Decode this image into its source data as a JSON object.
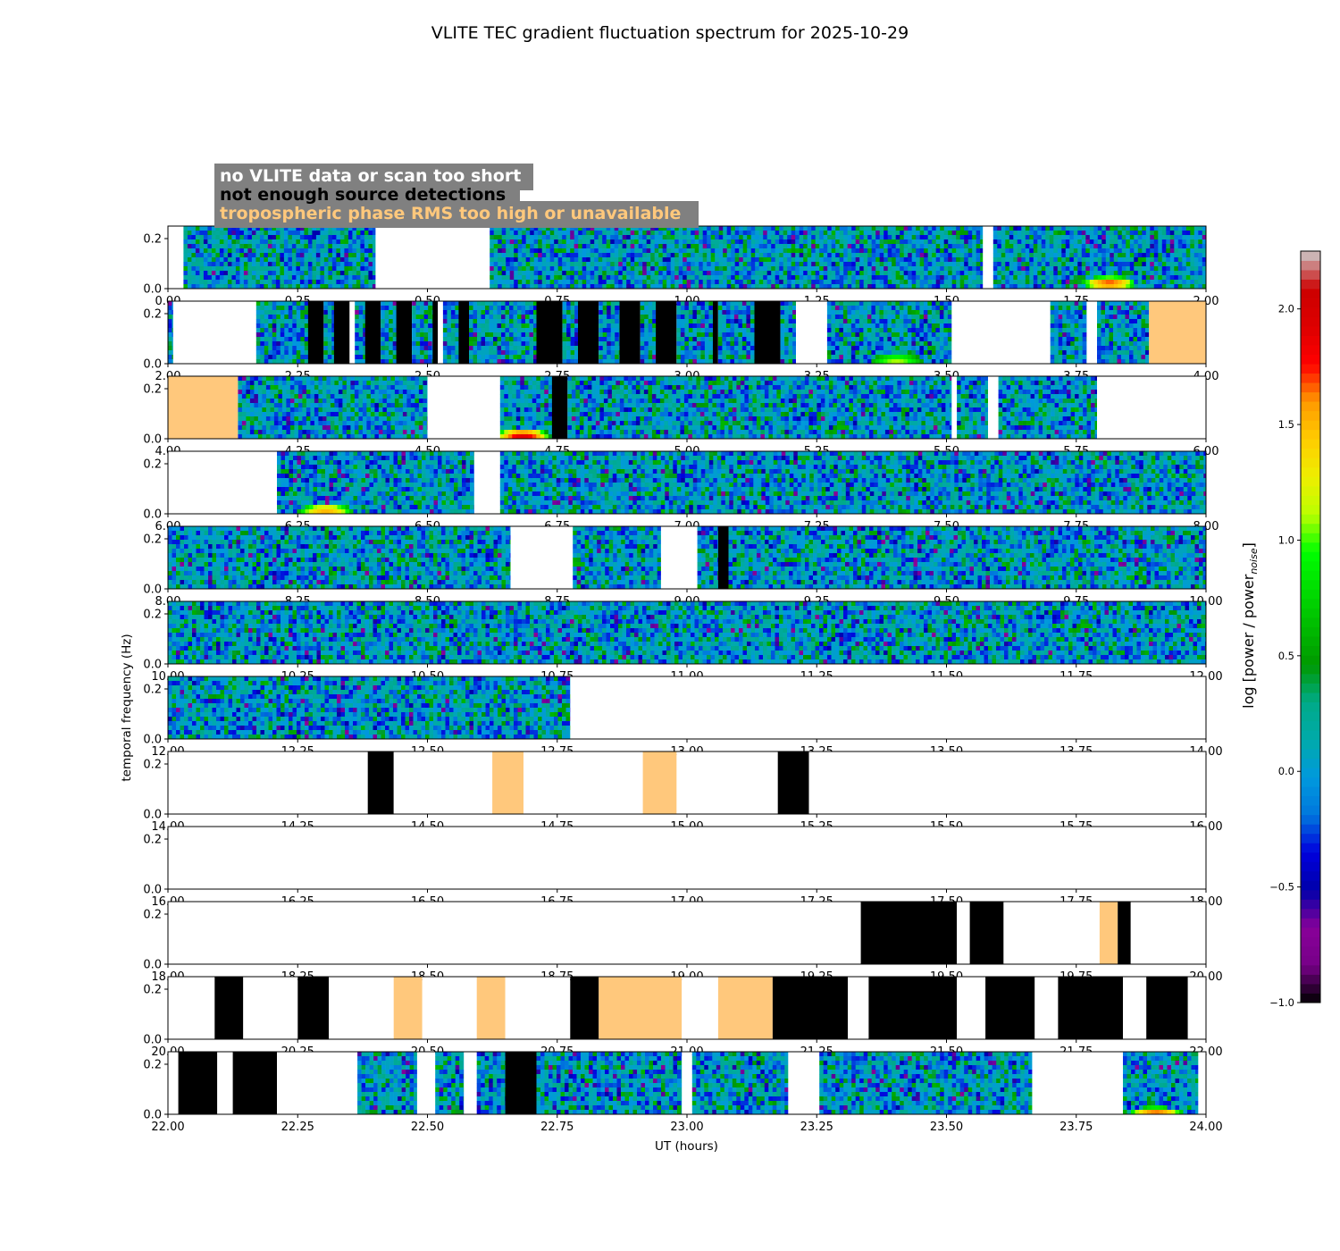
{
  "chart_data": {
    "type": "heatmap",
    "title": "VLITE TEC gradient fluctuation spectrum for 2025-10-29",
    "xlabel": "UT (hours)",
    "ylabel": "temporal frequency (Hz)",
    "colorbar_label": "log [power / power",
    "colorbar_label_sub": "noise",
    "colorbar_label_end": "]",
    "colorbar_range": [
      -1.0,
      2.25
    ],
    "colorbar_ticks": [
      "−1.0",
      "−0.5",
      "0.0",
      "0.5",
      "1.0",
      "1.5",
      "2.0"
    ],
    "colormap": "nipy_spectral",
    "y_range": [
      0.0,
      0.25
    ],
    "y_ticks": [
      "0.0",
      "0.2"
    ],
    "legend": {
      "placement": "top-left",
      "background": "#808080",
      "entries": [
        {
          "label": "no VLITE data or scan too short",
          "color": "#ffffff"
        },
        {
          "label": "not enough source detections",
          "color": "#000000"
        },
        {
          "label": "tropospheric phase RMS too high or unavailable",
          "color": "#ffc87c"
        }
      ]
    },
    "panels": [
      {
        "x_range": [
          0,
          2
        ],
        "x_ticks": [
          "0.00",
          "0.25",
          "0.50",
          "0.75",
          "1.00",
          "1.25",
          "1.50",
          "1.75",
          "2.00"
        ],
        "data": [
          [
            0.03,
            0.4,
            "d"
          ],
          [
            0.4,
            0.62,
            "w"
          ],
          [
            0.62,
            1.57,
            "d"
          ],
          [
            1.57,
            1.59,
            "w"
          ],
          [
            1.59,
            2.0,
            "d"
          ]
        ],
        "hotspots": [
          {
            "x": 1.81,
            "y": 0.03,
            "level": 1.7
          }
        ]
      },
      {
        "x_range": [
          2,
          4
        ],
        "x_ticks": [
          "2.00",
          "2.25",
          "2.50",
          "2.75",
          "3.00",
          "3.25",
          "3.50",
          "3.75",
          "4.00"
        ],
        "data": [
          [
            2.0,
            2.01,
            "d"
          ],
          [
            2.01,
            2.17,
            "w"
          ],
          [
            2.17,
            2.27,
            "d"
          ],
          [
            2.27,
            2.3,
            "b"
          ],
          [
            2.3,
            2.32,
            "d"
          ],
          [
            2.32,
            2.35,
            "b"
          ],
          [
            2.35,
            2.36,
            "w"
          ],
          [
            2.36,
            2.38,
            "d"
          ],
          [
            2.38,
            2.41,
            "b"
          ],
          [
            2.41,
            2.44,
            "d"
          ],
          [
            2.44,
            2.47,
            "b"
          ],
          [
            2.47,
            2.51,
            "d"
          ],
          [
            2.51,
            2.52,
            "b"
          ],
          [
            2.52,
            2.53,
            "w"
          ],
          [
            2.53,
            2.56,
            "d"
          ],
          [
            2.56,
            2.58,
            "b"
          ],
          [
            2.58,
            2.71,
            "d"
          ],
          [
            2.71,
            2.76,
            "b"
          ],
          [
            2.76,
            2.79,
            "d"
          ],
          [
            2.79,
            2.83,
            "b"
          ],
          [
            2.83,
            2.87,
            "d"
          ],
          [
            2.87,
            2.91,
            "b"
          ],
          [
            2.91,
            2.94,
            "d"
          ],
          [
            2.94,
            2.98,
            "b"
          ],
          [
            2.98,
            3.05,
            "d"
          ],
          [
            3.05,
            3.06,
            "b"
          ],
          [
            3.06,
            3.13,
            "d"
          ],
          [
            3.13,
            3.18,
            "b"
          ],
          [
            3.18,
            3.21,
            "d"
          ],
          [
            3.21,
            3.27,
            "w"
          ],
          [
            3.27,
            3.51,
            "d"
          ],
          [
            3.51,
            3.7,
            "w"
          ],
          [
            3.7,
            3.77,
            "d"
          ],
          [
            3.77,
            3.79,
            "w"
          ],
          [
            3.79,
            3.89,
            "d"
          ],
          [
            3.89,
            4.0,
            "o"
          ]
        ],
        "hotspots": [
          {
            "x": 3.4,
            "y": 0.02,
            "level": 1.1
          }
        ]
      },
      {
        "x_range": [
          4,
          6
        ],
        "x_ticks": [
          "4.00",
          "4.25",
          "4.50",
          "4.75",
          "5.00",
          "5.25",
          "5.50",
          "5.75",
          "6.00"
        ],
        "data": [
          [
            4.0,
            4.135,
            "o"
          ],
          [
            4.135,
            4.5,
            "d"
          ],
          [
            4.5,
            4.64,
            "w"
          ],
          [
            4.64,
            4.74,
            "d"
          ],
          [
            4.74,
            4.77,
            "b"
          ],
          [
            4.77,
            5.51,
            "d"
          ],
          [
            5.51,
            5.52,
            "w"
          ],
          [
            5.52,
            5.58,
            "d"
          ],
          [
            5.58,
            5.6,
            "w"
          ],
          [
            5.6,
            5.79,
            "d"
          ],
          [
            5.79,
            6.0,
            "w"
          ]
        ],
        "hotspots": [
          {
            "x": 4.68,
            "y": 0.02,
            "level": 1.9
          }
        ]
      },
      {
        "x_range": [
          6,
          8
        ],
        "x_ticks": [
          "6.00",
          "6.25",
          "6.50",
          "6.75",
          "7.00",
          "7.25",
          "7.50",
          "7.75",
          "8.00"
        ],
        "data": [
          [
            6.0,
            6.21,
            "w"
          ],
          [
            6.21,
            6.59,
            "d"
          ],
          [
            6.59,
            6.64,
            "w"
          ],
          [
            6.64,
            8.0,
            "d"
          ]
        ],
        "hotspots": [
          {
            "x": 6.3,
            "y": 0.02,
            "level": 1.5
          }
        ]
      },
      {
        "x_range": [
          8,
          10
        ],
        "x_ticks": [
          "8.00",
          "8.25",
          "8.50",
          "8.75",
          "9.00",
          "9.25",
          "9.50",
          "9.75",
          "10.00"
        ],
        "data": [
          [
            8.0,
            8.66,
            "d"
          ],
          [
            8.66,
            8.78,
            "w"
          ],
          [
            8.78,
            8.95,
            "d"
          ],
          [
            8.95,
            9.02,
            "w"
          ],
          [
            9.02,
            9.06,
            "d"
          ],
          [
            9.06,
            9.08,
            "b"
          ],
          [
            9.08,
            10.0,
            "d"
          ]
        ],
        "hotspots": []
      },
      {
        "x_range": [
          10,
          12
        ],
        "x_ticks": [
          "10.00",
          "10.25",
          "10.50",
          "10.75",
          "11.00",
          "11.25",
          "11.50",
          "11.75",
          "12.00"
        ],
        "data": [
          [
            10.0,
            12.0,
            "d"
          ]
        ],
        "hotspots": []
      },
      {
        "x_range": [
          12,
          14
        ],
        "x_ticks": [
          "12.00",
          "12.25",
          "12.50",
          "12.75",
          "13.00",
          "13.25",
          "13.50",
          "13.75",
          "14.00"
        ],
        "data": [
          [
            12.0,
            12.775,
            "d"
          ],
          [
            12.775,
            14.0,
            "w"
          ]
        ],
        "hotspots": []
      },
      {
        "x_range": [
          14,
          16
        ],
        "x_ticks": [
          "14.00",
          "14.25",
          "14.50",
          "14.75",
          "15.00",
          "15.25",
          "15.50",
          "15.75",
          "16.00"
        ],
        "data": [
          [
            14.0,
            14.385,
            "w"
          ],
          [
            14.385,
            14.435,
            "b"
          ],
          [
            14.435,
            14.625,
            "w"
          ],
          [
            14.625,
            14.685,
            "o"
          ],
          [
            14.685,
            14.915,
            "w"
          ],
          [
            14.915,
            14.98,
            "o"
          ],
          [
            14.98,
            15.175,
            "w"
          ],
          [
            15.175,
            15.235,
            "b"
          ],
          [
            15.235,
            16.0,
            "w"
          ]
        ],
        "hotspots": []
      },
      {
        "x_range": [
          16,
          18
        ],
        "x_ticks": [
          "16.00",
          "16.25",
          "16.50",
          "16.75",
          "17.00",
          "17.25",
          "17.50",
          "17.75",
          "18.00"
        ],
        "data": [
          [
            16.0,
            18.0,
            "w"
          ]
        ],
        "hotspots": []
      },
      {
        "x_range": [
          18,
          20
        ],
        "x_ticks": [
          "18.00",
          "18.25",
          "18.50",
          "18.75",
          "19.00",
          "19.25",
          "19.50",
          "19.75",
          "20.00"
        ],
        "data": [
          [
            18.0,
            19.335,
            "w"
          ],
          [
            19.335,
            19.52,
            "b"
          ],
          [
            19.52,
            19.545,
            "w"
          ],
          [
            19.545,
            19.61,
            "b"
          ],
          [
            19.61,
            19.795,
            "w"
          ],
          [
            19.795,
            19.83,
            "o"
          ],
          [
            19.83,
            19.855,
            "b"
          ],
          [
            19.855,
            20.0,
            "w"
          ]
        ],
        "hotspots": []
      },
      {
        "x_range": [
          20,
          22
        ],
        "x_ticks": [
          "20.00",
          "20.25",
          "20.50",
          "20.75",
          "21.00",
          "21.25",
          "21.50",
          "21.75",
          "22.00"
        ],
        "data": [
          [
            20.0,
            20.09,
            "w"
          ],
          [
            20.09,
            20.145,
            "b"
          ],
          [
            20.145,
            20.25,
            "w"
          ],
          [
            20.25,
            20.31,
            "b"
          ],
          [
            20.31,
            20.435,
            "w"
          ],
          [
            20.435,
            20.49,
            "o"
          ],
          [
            20.49,
            20.595,
            "w"
          ],
          [
            20.595,
            20.65,
            "o"
          ],
          [
            20.65,
            20.775,
            "w"
          ],
          [
            20.775,
            20.83,
            "b"
          ],
          [
            20.83,
            20.99,
            "o"
          ],
          [
            20.99,
            21.06,
            "w"
          ],
          [
            21.06,
            21.165,
            "o"
          ],
          [
            21.165,
            21.31,
            "b"
          ],
          [
            21.31,
            21.35,
            "w"
          ],
          [
            21.35,
            21.52,
            "b"
          ],
          [
            21.52,
            21.575,
            "w"
          ],
          [
            21.575,
            21.67,
            "b"
          ],
          [
            21.67,
            21.715,
            "w"
          ],
          [
            21.715,
            21.84,
            "b"
          ],
          [
            21.84,
            21.885,
            "w"
          ],
          [
            21.885,
            21.965,
            "b"
          ],
          [
            21.965,
            22.0,
            "w"
          ]
        ],
        "hotspots": []
      },
      {
        "x_range": [
          22,
          24
        ],
        "x_ticks": [
          "22.00",
          "22.25",
          "22.50",
          "22.75",
          "23.00",
          "23.25",
          "23.50",
          "23.75",
          "24.00"
        ],
        "data": [
          [
            22.0,
            22.02,
            "w"
          ],
          [
            22.02,
            22.095,
            "b"
          ],
          [
            22.095,
            22.125,
            "w"
          ],
          [
            22.125,
            22.21,
            "b"
          ],
          [
            22.21,
            22.365,
            "w"
          ],
          [
            22.365,
            22.48,
            "d"
          ],
          [
            22.48,
            22.515,
            "w"
          ],
          [
            22.515,
            22.57,
            "d"
          ],
          [
            22.57,
            22.595,
            "w"
          ],
          [
            22.595,
            22.65,
            "d"
          ],
          [
            22.65,
            22.71,
            "b"
          ],
          [
            22.71,
            22.99,
            "d"
          ],
          [
            22.99,
            23.01,
            "w"
          ],
          [
            23.01,
            23.195,
            "d"
          ],
          [
            23.195,
            23.255,
            "w"
          ],
          [
            23.255,
            23.665,
            "d"
          ],
          [
            23.665,
            23.84,
            "w"
          ],
          [
            23.84,
            23.985,
            "d"
          ],
          [
            23.985,
            24.0,
            "w"
          ]
        ],
        "hotspots": [
          {
            "x": 23.9,
            "y": 0.01,
            "level": 1.7
          }
        ]
      }
    ]
  }
}
